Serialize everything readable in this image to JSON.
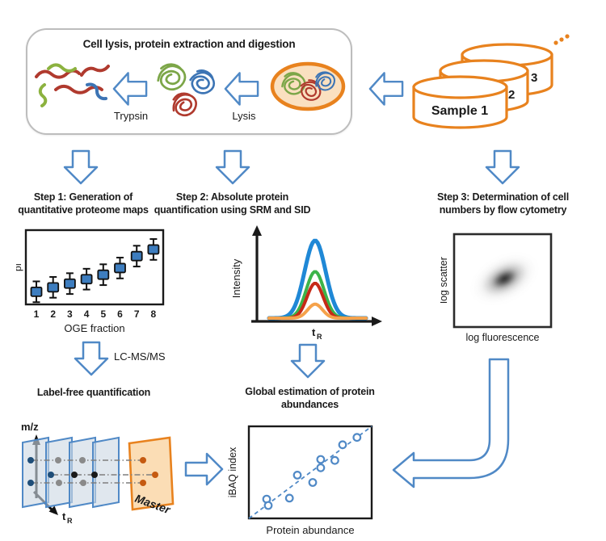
{
  "palette": {
    "arrow_blue": "#5089C6",
    "orange": "#E8821E",
    "cell_fill": "#FAE0C0",
    "box_border": "#BDBDBD",
    "marker_blue": "#3D7DBF",
    "dot_dark_blue": "#1F4E79",
    "dot_gray": "#8A8A8A",
    "dot_black": "#1A1A1A",
    "dot_orange": "#C55A11",
    "plane_fill": "#CDD8E4",
    "master_fill": "#FBDDB5",
    "squiggle_red": "#B03A2E",
    "squiggle_green": "#8CB23F",
    "squiggle_blue": "#3C74B4"
  },
  "top_box": {
    "title": "Cell lysis, protein extraction and digestion",
    "trypsin_label": "Trypsin",
    "lysis_label": "Lysis"
  },
  "samples": {
    "front_label": "Sample 1",
    "mid_label": "2",
    "back_label": "3",
    "ellipsis": "..."
  },
  "steps": [
    {
      "line1": "Step 1: Generation of",
      "line2": "quantitative proteome maps"
    },
    {
      "line1": "Step 2: Absolute protein",
      "line2": "quantification using SRM and SID"
    },
    {
      "line1": "Step 3: Determination of cell",
      "line2": "numbers by flow cytometry"
    }
  ],
  "labels": {
    "lcmsms": "LC-MS/MS",
    "labelfree_heading": "Label-free quantification",
    "global_heading_line1": "Global estimation of protein",
    "global_heading_line2": "abundances",
    "master": "Master"
  },
  "axes": {
    "mz": "m/z",
    "t_base": "t",
    "t_sub": "R"
  },
  "chart_data": [
    {
      "type": "scatter",
      "title": "",
      "xlabel": "OGE fraction",
      "ylabel": "pI",
      "categories": [
        "1",
        "2",
        "3",
        "4",
        "5",
        "6",
        "7",
        "8"
      ],
      "values": [
        0.17,
        0.23,
        0.28,
        0.34,
        0.4,
        0.49,
        0.65,
        0.74
      ],
      "whisker": 0.14,
      "ylim": [
        0,
        1
      ],
      "marker": "square",
      "marker_color": "#3D7DBF",
      "note": "pI increases monotonically with OGE fraction"
    },
    {
      "type": "line",
      "xlabel_base": "t",
      "xlabel_sub": "R",
      "ylabel": "Intensity",
      "note": "co-eluting SRM/SID chromatographic peaks, same retention time",
      "series": [
        {
          "name": "blue-peak",
          "color": "#1F88D6",
          "height": 1.0,
          "sigma_rel": 1.0
        },
        {
          "name": "green-peak",
          "color": "#3CB44A",
          "height": 0.6,
          "sigma_rel": 0.85
        },
        {
          "name": "red-peak",
          "color": "#C62A17",
          "height": 0.45,
          "sigma_rel": 0.77
        },
        {
          "name": "orange-peak",
          "color": "#F5A24B",
          "height": 0.18,
          "sigma_rel": 0.7
        }
      ]
    },
    {
      "type": "heatmap",
      "xlabel": "log fluorescence",
      "ylabel": "log scatter",
      "note": "flow cytometry density cloud of cell population",
      "population": {
        "center_x": 0.52,
        "center_y": 0.52,
        "tilt_deg": -28,
        "shape": "elongated diagonal"
      }
    },
    {
      "type": "scatter",
      "xlabel": "Protein abundance",
      "ylabel": "iBAQ index",
      "points": [
        [
          0.145,
          0.21
        ],
        [
          0.158,
          0.14
        ],
        [
          0.33,
          0.22
        ],
        [
          0.395,
          0.47
        ],
        [
          0.52,
          0.39
        ],
        [
          0.585,
          0.64
        ],
        [
          0.585,
          0.55
        ],
        [
          0.7,
          0.63
        ],
        [
          0.763,
          0.8
        ],
        [
          0.88,
          0.88
        ]
      ],
      "trendline": {
        "from": [
          0,
          0
        ],
        "to": [
          1,
          1
        ],
        "style": "dashed",
        "color": "#5089C6"
      },
      "note": "iBAQ index correlates linearly with protein abundance"
    }
  ]
}
